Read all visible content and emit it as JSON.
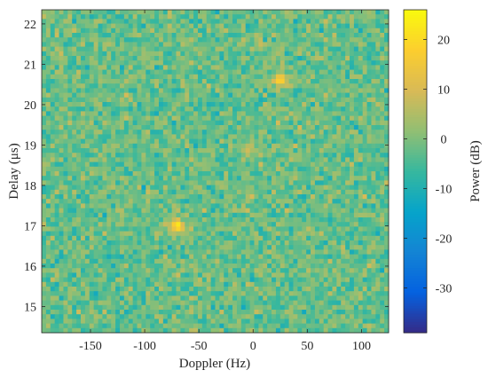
{
  "chart_data": {
    "type": "heatmap",
    "xlabel": "Doppler (Hz)",
    "ylabel": "Delay (μs)",
    "colorbar_label": "Power (dB)",
    "xlim": [
      -195,
      125
    ],
    "ylim": [
      14.35,
      22.35
    ],
    "clim": [
      -39,
      26
    ],
    "colormap": "parula",
    "x_ticks": [
      -150,
      -100,
      -50,
      0,
      50,
      100
    ],
    "x_tick_labels": [
      "-150",
      "-100",
      "-50",
      "0",
      "50",
      "100"
    ],
    "y_ticks": [
      15,
      16,
      17,
      18,
      19,
      20,
      21,
      22
    ],
    "y_tick_labels": [
      "15",
      "16",
      "17",
      "18",
      "19",
      "20",
      "21",
      "22"
    ],
    "colorbar_ticks": [
      -30,
      -20,
      -10,
      0,
      10,
      20
    ],
    "colorbar_tick_labels": [
      "-30",
      "-20",
      "-10",
      "0",
      "10",
      "20"
    ],
    "background_noise_db": {
      "mean": -2,
      "spread": 8
    },
    "peaks": [
      {
        "doppler_hz": -70,
        "delay_us": 17.0,
        "power_db": 24
      },
      {
        "doppler_hz": 25,
        "delay_us": 20.6,
        "power_db": 20
      },
      {
        "doppler_hz": -5,
        "delay_us": 18.9,
        "power_db": 9
      }
    ]
  }
}
